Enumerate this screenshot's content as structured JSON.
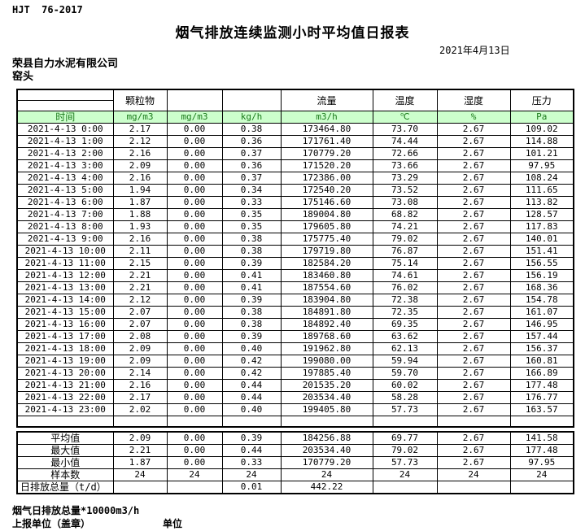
{
  "page": {
    "standard": "HJT  76-2017",
    "title": "烟气排放连续监测小时平均值日报表",
    "date": "2021年4月13日",
    "company": "荣县自力水泥有限公司",
    "location": "窑头"
  },
  "table": {
    "group_headers": [
      "",
      "颗粒物",
      "",
      "",
      "流量",
      "温度",
      "湿度",
      "压力"
    ],
    "unit_row": [
      "时间",
      "mg/m3",
      "mg/m3",
      "kg/h",
      "m3/h",
      "℃",
      "%",
      "Pa"
    ],
    "rows": [
      [
        "2021-4-13 0:00",
        "2.17",
        "0.00",
        "0.38",
        "173464.80",
        "73.70",
        "2.67",
        "109.02"
      ],
      [
        "2021-4-13 1:00",
        "2.12",
        "0.00",
        "0.36",
        "171761.40",
        "74.44",
        "2.67",
        "114.88"
      ],
      [
        "2021-4-13 2:00",
        "2.16",
        "0.00",
        "0.37",
        "170779.20",
        "72.66",
        "2.67",
        "101.21"
      ],
      [
        "2021-4-13 3:00",
        "2.09",
        "0.00",
        "0.36",
        "171520.20",
        "73.66",
        "2.67",
        "97.95"
      ],
      [
        "2021-4-13 4:00",
        "2.16",
        "0.00",
        "0.37",
        "172386.00",
        "73.29",
        "2.67",
        "108.24"
      ],
      [
        "2021-4-13 5:00",
        "1.94",
        "0.00",
        "0.34",
        "172540.20",
        "73.52",
        "2.67",
        "111.65"
      ],
      [
        "2021-4-13 6:00",
        "1.87",
        "0.00",
        "0.33",
        "175146.60",
        "73.08",
        "2.67",
        "113.82"
      ],
      [
        "2021-4-13 7:00",
        "1.88",
        "0.00",
        "0.35",
        "189004.80",
        "68.82",
        "2.67",
        "128.57"
      ],
      [
        "2021-4-13 8:00",
        "1.93",
        "0.00",
        "0.35",
        "179605.80",
        "74.21",
        "2.67",
        "117.83"
      ],
      [
        "2021-4-13 9:00",
        "2.16",
        "0.00",
        "0.38",
        "175775.40",
        "79.02",
        "2.67",
        "140.01"
      ],
      [
        "2021-4-13 10:00",
        "2.11",
        "0.00",
        "0.38",
        "179719.80",
        "76.87",
        "2.67",
        "151.41"
      ],
      [
        "2021-4-13 11:00",
        "2.15",
        "0.00",
        "0.39",
        "182584.20",
        "75.14",
        "2.67",
        "156.55"
      ],
      [
        "2021-4-13 12:00",
        "2.21",
        "0.00",
        "0.41",
        "183460.80",
        "74.61",
        "2.67",
        "156.19"
      ],
      [
        "2021-4-13 13:00",
        "2.21",
        "0.00",
        "0.41",
        "187554.60",
        "76.02",
        "2.67",
        "168.36"
      ],
      [
        "2021-4-13 14:00",
        "2.12",
        "0.00",
        "0.39",
        "183904.80",
        "72.38",
        "2.67",
        "154.78"
      ],
      [
        "2021-4-13 15:00",
        "2.07",
        "0.00",
        "0.38",
        "184891.80",
        "72.35",
        "2.67",
        "161.07"
      ],
      [
        "2021-4-13 16:00",
        "2.07",
        "0.00",
        "0.38",
        "184892.40",
        "69.35",
        "2.67",
        "146.95"
      ],
      [
        "2021-4-13 17:00",
        "2.08",
        "0.00",
        "0.39",
        "189768.60",
        "63.62",
        "2.67",
        "157.44"
      ],
      [
        "2021-4-13 18:00",
        "2.09",
        "0.00",
        "0.40",
        "191962.80",
        "62.13",
        "2.67",
        "156.37"
      ],
      [
        "2021-4-13 19:00",
        "2.09",
        "0.00",
        "0.42",
        "199080.00",
        "59.94",
        "2.67",
        "160.81"
      ],
      [
        "2021-4-13 20:00",
        "2.14",
        "0.00",
        "0.42",
        "197885.40",
        "59.70",
        "2.67",
        "166.89"
      ],
      [
        "2021-4-13 21:00",
        "2.16",
        "0.00",
        "0.44",
        "201535.20",
        "60.02",
        "2.67",
        "177.48"
      ],
      [
        "2021-4-13 22:00",
        "2.17",
        "0.00",
        "0.44",
        "203534.40",
        "58.28",
        "2.67",
        "176.77"
      ],
      [
        "2021-4-13 23:00",
        "2.02",
        "0.00",
        "0.40",
        "199405.80",
        "57.73",
        "2.67",
        "163.57"
      ]
    ],
    "summary": [
      [
        "平均值",
        "2.09",
        "0.00",
        "0.39",
        "184256.88",
        "69.77",
        "2.67",
        "141.58"
      ],
      [
        "最大值",
        "2.21",
        "0.00",
        "0.44",
        "203534.40",
        "79.02",
        "2.67",
        "177.48"
      ],
      [
        "最小值",
        "1.87",
        "0.00",
        "0.33",
        "170779.20",
        "57.73",
        "2.67",
        "97.95"
      ],
      [
        "样本数",
        "24",
        "24",
        "24",
        "24",
        "24",
        "24",
        "24"
      ],
      [
        "日排放总量（t/d）",
        "",
        "",
        "0.01",
        "442.22",
        "",
        "",
        ""
      ]
    ]
  },
  "footer": {
    "note": "烟气日排放总量*10000m3/h",
    "report_unit_label": "上报单位（盖章）",
    "unit_label": "单位"
  },
  "colors": {
    "header_green_bg": "#ccffcc",
    "header_green_text": "#1a7a1a",
    "border": "#000000"
  }
}
